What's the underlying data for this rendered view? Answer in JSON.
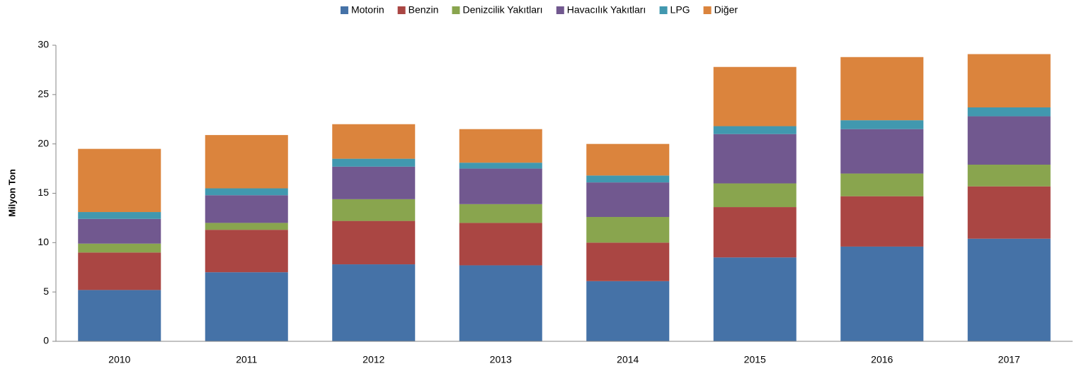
{
  "chart_data": {
    "type": "stacked_bar",
    "y_label": "Milyon Ton",
    "categories": [
      "2010",
      "2011",
      "2012",
      "2013",
      "2014",
      "2015",
      "2016",
      "2017"
    ],
    "series": [
      {
        "name": "Motorin",
        "color": "#4572a7",
        "values": [
          5.2,
          7.0,
          7.8,
          7.7,
          6.1,
          8.5,
          9.6,
          10.4
        ]
      },
      {
        "name": "Benzin",
        "color": "#aa4643",
        "values": [
          3.8,
          4.3,
          4.4,
          4.3,
          3.9,
          5.1,
          5.1,
          5.3
        ]
      },
      {
        "name": "Denizcilik Yakıtları",
        "color": "#89a54e",
        "values": [
          0.9,
          0.7,
          2.2,
          1.9,
          2.6,
          2.4,
          2.3,
          2.2
        ]
      },
      {
        "name": "Havacılık Yakıtları",
        "color": "#71588f",
        "values": [
          2.5,
          2.8,
          3.3,
          3.6,
          3.5,
          5.0,
          4.5,
          4.9
        ]
      },
      {
        "name": "LPG",
        "color": "#4198af",
        "values": [
          0.7,
          0.7,
          0.8,
          0.6,
          0.7,
          0.8,
          0.9,
          0.9
        ]
      },
      {
        "name": "Diğer",
        "color": "#db843d",
        "values": [
          6.4,
          5.4,
          3.5,
          3.4,
          3.2,
          6.0,
          6.4,
          5.4
        ]
      }
    ],
    "ylim": [
      0,
      30
    ],
    "yticks": [
      0,
      5,
      10,
      15,
      20,
      25,
      30
    ],
    "grid": false,
    "legend": "top"
  }
}
